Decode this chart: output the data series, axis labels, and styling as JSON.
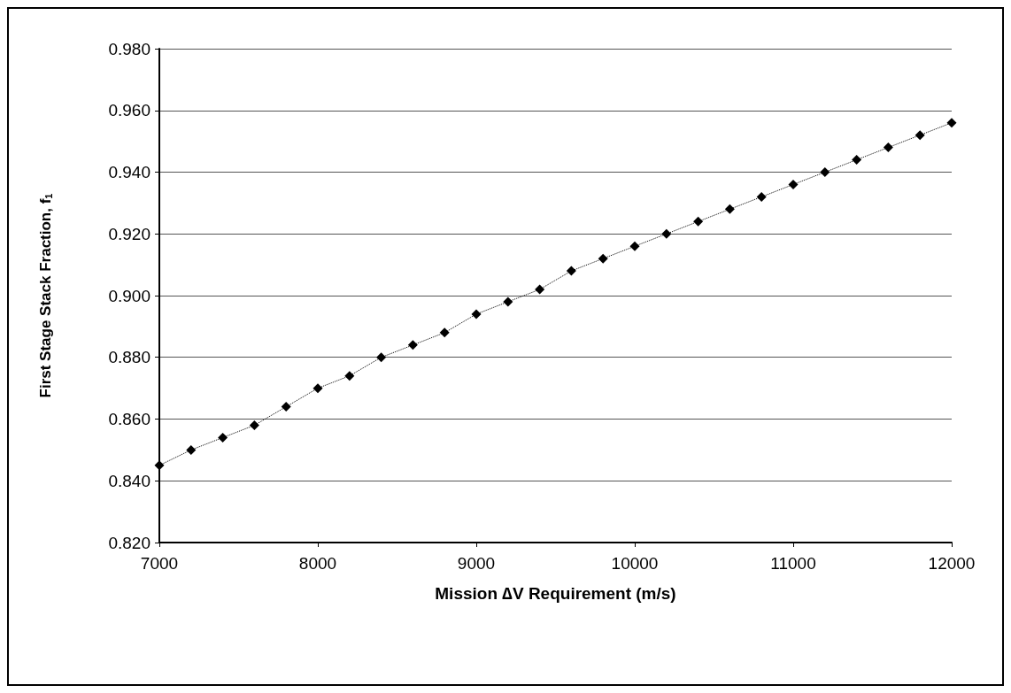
{
  "chart_data": {
    "type": "line",
    "xlabel": "Mission ∆V Requirement (m/s)",
    "ylabel": "First Stage Stack Fraction, f$_{1}$",
    "x": [
      7000,
      7200,
      7400,
      7600,
      7800,
      8000,
      8200,
      8400,
      8600,
      8800,
      9000,
      9200,
      9400,
      9600,
      9800,
      10000,
      10200,
      10400,
      10600,
      10800,
      11000,
      11200,
      11400,
      11600,
      11800,
      12000
    ],
    "series": [
      {
        "color": "#000000",
        "values": [
          0.845,
          0.85,
          0.854,
          0.858,
          0.864,
          0.87,
          0.874,
          0.88,
          0.884,
          0.888,
          0.894,
          0.898,
          0.902,
          0.908,
          0.912,
          0.916,
          0.92,
          0.924,
          0.928,
          0.932,
          0.936,
          0.94,
          0.944,
          0.948,
          0.952,
          0.956
        ]
      }
    ],
    "xlim": [
      7000,
      12000
    ],
    "xticks": [
      7000,
      8000,
      9000,
      10000,
      11000,
      12000
    ],
    "ylim": [
      0.82,
      0.98
    ],
    "yticks": [
      {
        "value": 0.82,
        "label": "0.820"
      },
      {
        "value": 0.84,
        "label": "0.840"
      },
      {
        "value": 0.86,
        "label": "0.860"
      },
      {
        "value": 0.88,
        "label": "0.880"
      },
      {
        "value": 0.9,
        "label": "0.900"
      },
      {
        "value": 0.92,
        "label": "0.920"
      },
      {
        "value": 0.94,
        "label": "0.940"
      },
      {
        "value": 0.96,
        "label": "0.960"
      },
      {
        "value": 0.98,
        "label": "0.980"
      }
    ],
    "grid": "y",
    "marker": "diamond",
    "line_style": "dotted"
  }
}
